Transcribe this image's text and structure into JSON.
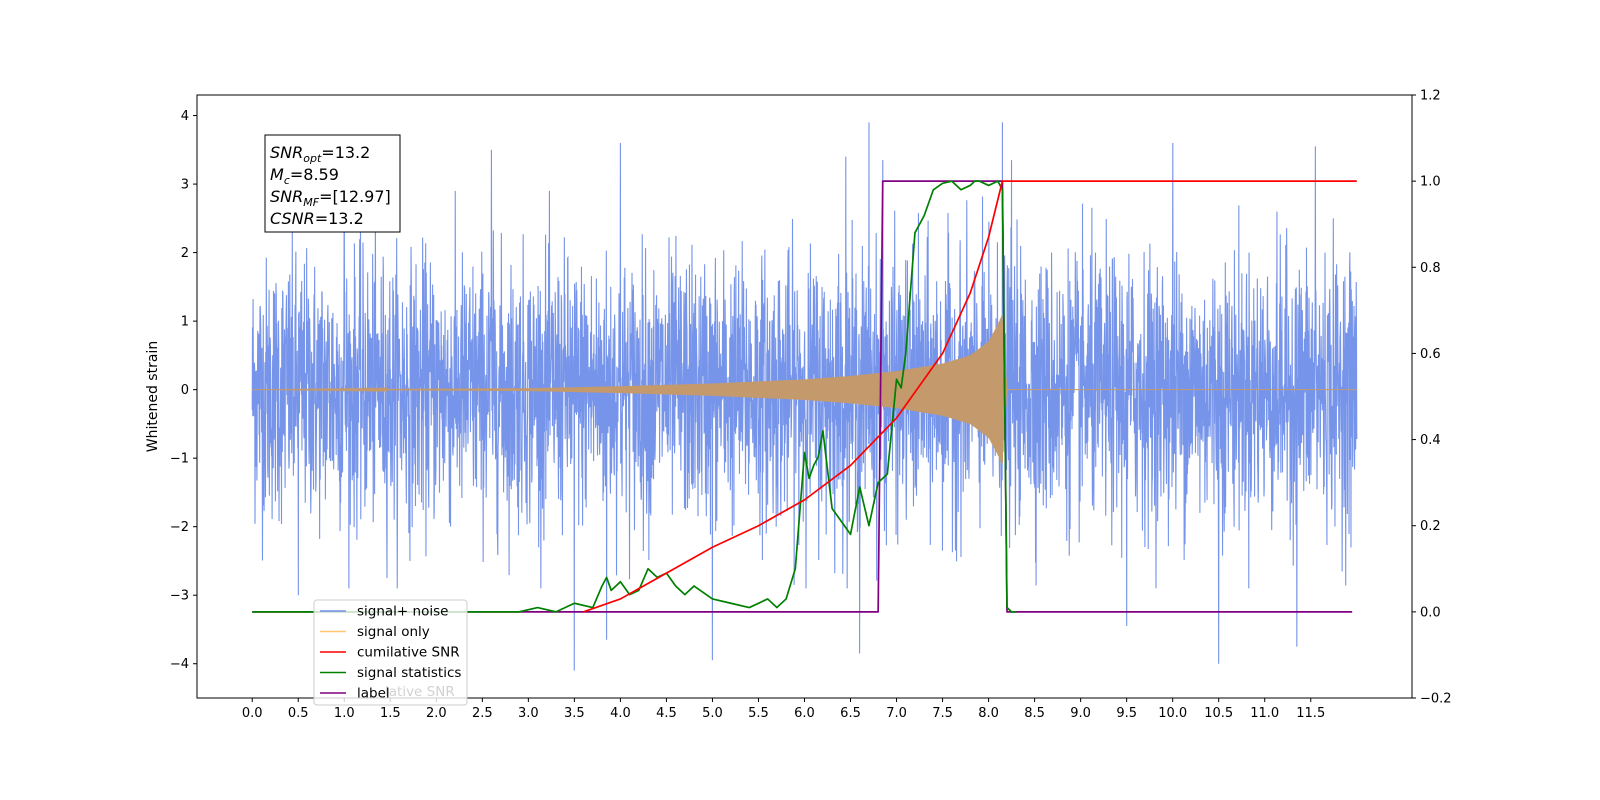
{
  "chart_data": {
    "type": "line",
    "title": "",
    "xlabel": "",
    "ylabel": "Whitened strain",
    "xlim": [
      -0.6,
      12.6
    ],
    "ylim": [
      -4.5,
      4.3
    ],
    "y2lim": [
      -0.2,
      1.2
    ],
    "x_ticks": [
      "0.0",
      "0.5",
      "1.0",
      "1.5",
      "2.0",
      "2.5",
      "3.0",
      "3.5",
      "4.0",
      "4.5",
      "5.0",
      "5.5",
      "6.0",
      "6.5",
      "7.0",
      "7.5",
      "8.0",
      "8.5",
      "9.0",
      "9.5",
      "10.0",
      "10.5",
      "11.0",
      "11.5"
    ],
    "y_ticks": [
      "4",
      "3",
      "2",
      "1",
      "0",
      "−1",
      "−2",
      "−3",
      "−4"
    ],
    "y2_ticks": [
      "1.2",
      "1.0",
      "0.8",
      "0.6",
      "0.4",
      "0.2",
      "0.0",
      "−0.2"
    ],
    "grid": false,
    "legend_position": "lower-left",
    "info_box": {
      "lines": [
        {
          "name": "SNR",
          "sub": "opt",
          "value": "=13.2"
        },
        {
          "name": "M",
          "sub": "c",
          "value": "=8.59"
        },
        {
          "name": "SNR",
          "sub": "MF",
          "value": "=[12.97]"
        },
        {
          "name": "CSNR",
          "sub": "",
          "value": "=13.2"
        }
      ]
    },
    "series": [
      {
        "name": "signal+ noise",
        "color": "#6f8ee8",
        "axis": "left",
        "kind": "noise",
        "x_range": [
          0.0,
          12.0
        ],
        "typical_amplitude": [
          -2.0,
          2.2
        ],
        "peaks": [
          {
            "x": 0.5,
            "y": -3.0
          },
          {
            "x": 1.0,
            "y": 3.55
          },
          {
            "x": 2.6,
            "y": 3.5
          },
          {
            "x": 3.5,
            "y": -4.1
          },
          {
            "x": 3.85,
            "y": -3.65
          },
          {
            "x": 4.0,
            "y": 3.6
          },
          {
            "x": 5.0,
            "y": -3.95
          },
          {
            "x": 6.45,
            "y": 3.4
          },
          {
            "x": 6.6,
            "y": -3.85
          },
          {
            "x": 6.7,
            "y": 3.9
          },
          {
            "x": 6.85,
            "y": 3.35
          },
          {
            "x": 8.15,
            "y": 3.9
          },
          {
            "x": 8.25,
            "y": 3.35
          },
          {
            "x": 9.5,
            "y": -3.45
          },
          {
            "x": 10.0,
            "y": 3.6
          },
          {
            "x": 10.5,
            "y": -4.0
          },
          {
            "x": 11.35,
            "y": -3.75
          },
          {
            "x": 11.55,
            "y": 3.55
          }
        ]
      },
      {
        "name": "signal only",
        "color": "#c49a6c",
        "axis": "left",
        "kind": "chirp",
        "x": [
          0.0,
          3.0,
          4.0,
          5.0,
          6.0,
          6.5,
          7.0,
          7.5,
          7.8,
          8.0,
          8.1,
          8.15,
          8.2,
          12.0
        ],
        "envelope": [
          0.0,
          0.02,
          0.05,
          0.09,
          0.15,
          0.2,
          0.27,
          0.38,
          0.5,
          0.7,
          0.95,
          1.1,
          0.0,
          0.0
        ]
      },
      {
        "name": "cumilative SNR",
        "color": "#ff0000",
        "axis": "right",
        "x": [
          3.6,
          4.0,
          4.5,
          5.0,
          5.5,
          6.0,
          6.5,
          7.0,
          7.5,
          7.8,
          8.0,
          8.15,
          8.2,
          12.0
        ],
        "values": [
          0.0,
          0.03,
          0.09,
          0.15,
          0.2,
          0.26,
          0.34,
          0.45,
          0.6,
          0.74,
          0.87,
          1.0,
          1.0,
          1.0
        ]
      },
      {
        "name": "signal statistics",
        "color": "#008000",
        "axis": "right",
        "x": [
          0.0,
          2.9,
          3.1,
          3.3,
          3.5,
          3.7,
          3.8,
          3.85,
          3.9,
          4.0,
          4.1,
          4.2,
          4.3,
          4.4,
          4.5,
          4.6,
          4.7,
          4.8,
          5.0,
          5.2,
          5.4,
          5.6,
          5.7,
          5.8,
          5.9,
          6.0,
          6.05,
          6.1,
          6.15,
          6.2,
          6.3,
          6.4,
          6.5,
          6.6,
          6.7,
          6.8,
          6.9,
          7.0,
          7.05,
          7.1,
          7.2,
          7.3,
          7.4,
          7.5,
          7.6,
          7.7,
          7.8,
          7.85,
          7.9,
          8.0,
          8.1,
          8.15,
          8.2,
          8.25,
          8.3
        ],
        "values": [
          0.0,
          0.0,
          0.01,
          0.0,
          0.02,
          0.01,
          0.06,
          0.08,
          0.05,
          0.07,
          0.04,
          0.05,
          0.1,
          0.08,
          0.09,
          0.06,
          0.04,
          0.06,
          0.03,
          0.02,
          0.01,
          0.03,
          0.01,
          0.03,
          0.1,
          0.37,
          0.31,
          0.34,
          0.36,
          0.42,
          0.24,
          0.21,
          0.18,
          0.29,
          0.2,
          0.3,
          0.32,
          0.54,
          0.52,
          0.6,
          0.88,
          0.92,
          0.98,
          0.995,
          1.0,
          0.98,
          0.99,
          1.0,
          1.0,
          0.99,
          1.0,
          0.98,
          0.01,
          0.0,
          0.0
        ]
      },
      {
        "name": "label",
        "color": "#800080",
        "axis": "right",
        "x": [
          0.0,
          6.8,
          6.85,
          8.15,
          8.2,
          11.95
        ],
        "values": [
          0.0,
          0.0,
          1.0,
          1.0,
          0.0,
          0.0
        ]
      }
    ],
    "legend": [
      {
        "label": "signal+ noise",
        "color": "#6f8ee8"
      },
      {
        "label": "signal only",
        "color": "#ffc870"
      },
      {
        "label": "cumilative SNR",
        "color": "#ff0000"
      },
      {
        "label": "signal statistics",
        "color": "#008000"
      },
      {
        "label": "label",
        "color": "#800080"
      }
    ],
    "legend_overlap_text": "lative SNR"
  }
}
